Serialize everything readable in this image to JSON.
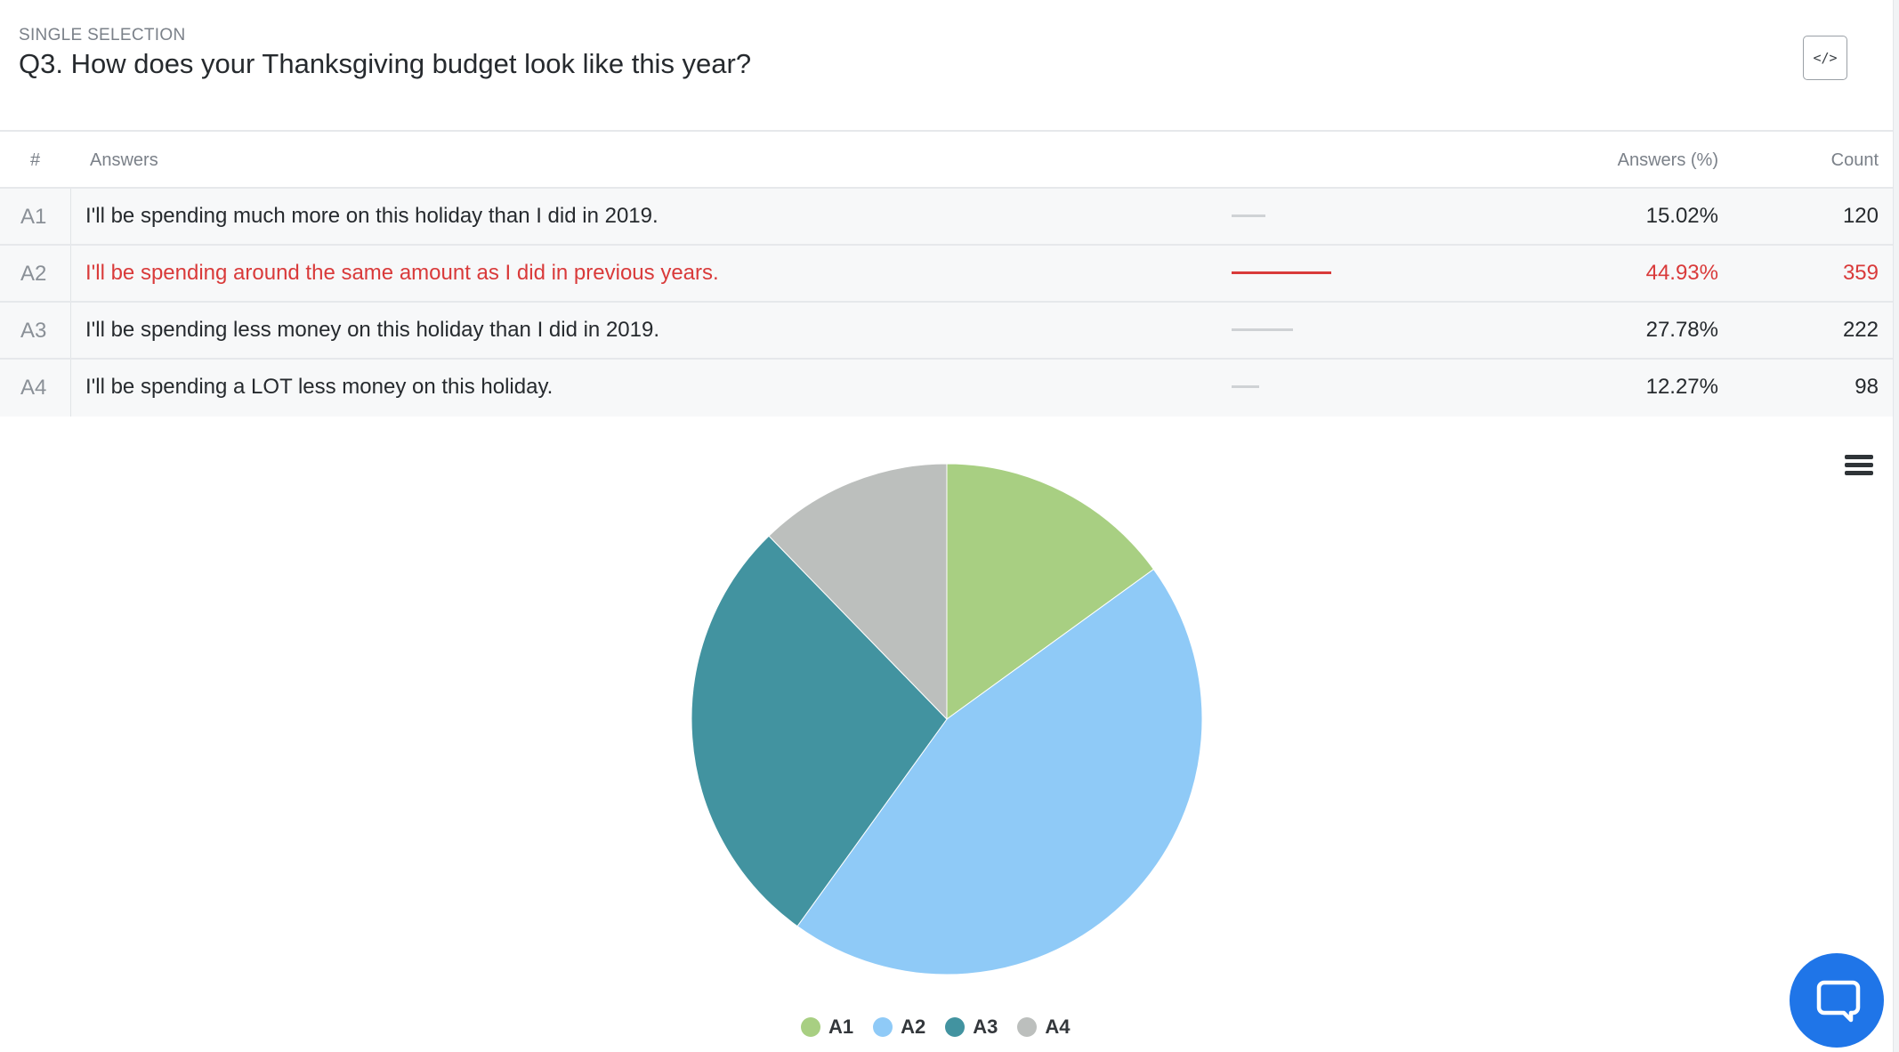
{
  "question": {
    "type_label": "SINGLE SELECTION",
    "title": "Q3. How does your Thanksgiving budget look like this year?",
    "embed_label": "</>"
  },
  "table": {
    "headers": {
      "num": "#",
      "answers": "Answers",
      "pct": "Answers (%)",
      "count": "Count"
    },
    "rows": [
      {
        "id": "A1",
        "text": "I'll be spending much more on this holiday than I did in 2019.",
        "pct": "15.02%",
        "count": "120",
        "share": 0.1502,
        "highlight": false
      },
      {
        "id": "A2",
        "text": "I'll be spending around the same amount as I did in previous years.",
        "pct": "44.93%",
        "count": "359",
        "share": 0.4493,
        "highlight": true
      },
      {
        "id": "A3",
        "text": "I'll be spending less money on this holiday than I did in 2019.",
        "pct": "27.78%",
        "count": "222",
        "share": 0.2778,
        "highlight": false
      },
      {
        "id": "A4",
        "text": "I'll be spending a LOT less money on this holiday.",
        "pct": "12.27%",
        "count": "98",
        "share": 0.1227,
        "highlight": false
      }
    ]
  },
  "chart_data": {
    "type": "pie",
    "categories": [
      "A1",
      "A2",
      "A3",
      "A4"
    ],
    "values": [
      15.02,
      44.93,
      27.78,
      12.27
    ],
    "colors": [
      "#a8cf82",
      "#8fcaf7",
      "#4293a0",
      "#bcbfbd"
    ],
    "legend": "bottom-center"
  },
  "icons": {
    "menu": "hamburger-menu-icon",
    "chat": "chat-bubble-icon"
  },
  "colors": {
    "highlight": "#d93a3a",
    "bar_default": "#cfd2d5",
    "chat": "#1f75e8"
  }
}
